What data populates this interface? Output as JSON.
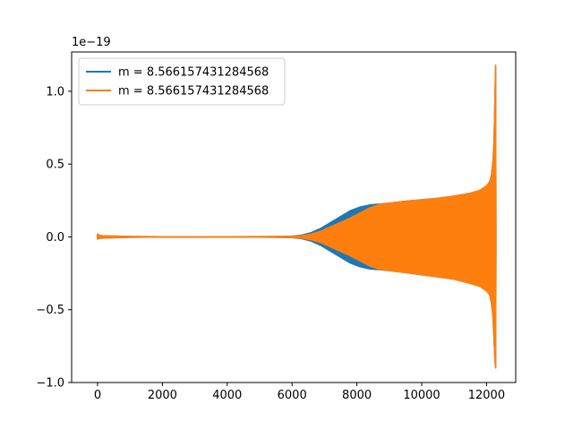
{
  "chart_data": {
    "type": "line",
    "title": "",
    "xlabel": "",
    "ylabel": "",
    "y_offset_label": "1e−19",
    "xlim": [
      -800,
      12900
    ],
    "ylim": [
      -1.0,
      1.27
    ],
    "x_ticks": [
      0,
      2000,
      4000,
      6000,
      8000,
      10000,
      12000
    ],
    "x_tick_labels": [
      "0",
      "2000",
      "4000",
      "6000",
      "8000",
      "10000",
      "12000"
    ],
    "y_ticks": [
      -1.0,
      -0.5,
      0.0,
      0.5,
      1.0
    ],
    "y_tick_labels": [
      "−1.0",
      "−0.5",
      "0.0",
      "0.5",
      "1.0"
    ],
    "grid": false,
    "legend_position": "upper-left",
    "series": [
      {
        "name": "m = 8.566157431284568",
        "color": "#1f77b4",
        "envelope": {
          "x": [
            0,
            30,
            60,
            200,
            1000,
            2000,
            3000,
            4000,
            5000,
            5500,
            6000,
            6300,
            6600,
            6900,
            7200,
            7500,
            7800,
            8100,
            8400,
            8700,
            9000,
            9500,
            10000,
            10500,
            11000,
            11500,
            11800,
            12000,
            12100,
            12150,
            12200,
            12230,
            12260,
            12280,
            12290
          ],
          "upper": [
            0.02,
            0.015,
            0.01,
            0.007,
            0.003,
            0.001,
            0.0008,
            0.0015,
            0.002,
            0.003,
            0.005,
            0.012,
            0.03,
            0.06,
            0.1,
            0.14,
            0.18,
            0.205,
            0.22,
            0.225,
            0.232,
            0.245,
            0.255,
            0.265,
            0.28,
            0.3,
            0.32,
            0.35,
            0.38,
            0.42,
            0.52,
            0.65,
            0.95,
            1.17,
            0.1
          ],
          "lower": [
            -0.015,
            -0.012,
            -0.01,
            -0.007,
            -0.003,
            -0.001,
            -0.0008,
            -0.0015,
            -0.002,
            -0.003,
            -0.005,
            -0.012,
            -0.03,
            -0.06,
            -0.1,
            -0.14,
            -0.18,
            -0.205,
            -0.22,
            -0.225,
            -0.232,
            -0.245,
            -0.26,
            -0.275,
            -0.29,
            -0.32,
            -0.34,
            -0.37,
            -0.4,
            -0.45,
            -0.55,
            -0.7,
            -0.85,
            -0.9,
            -0.1
          ]
        }
      },
      {
        "name": "m = 8.566157431284568",
        "color": "#ff7f0e",
        "envelope": {
          "x": [
            0,
            30,
            60,
            200,
            1000,
            2000,
            3000,
            4000,
            5000,
            5500,
            6000,
            6300,
            6600,
            6900,
            7200,
            7500,
            7800,
            8100,
            8400,
            8700,
            9000,
            9500,
            10000,
            10500,
            11000,
            11500,
            11800,
            12000,
            12100,
            12150,
            12200,
            12230,
            12260,
            12280,
            12290
          ],
          "upper": [
            0.02,
            0.015,
            0.01,
            0.007,
            0.003,
            0.001,
            0.0008,
            0.0015,
            0.002,
            0.003,
            0.004,
            0.008,
            0.02,
            0.04,
            0.07,
            0.1,
            0.13,
            0.165,
            0.2,
            0.222,
            0.232,
            0.245,
            0.255,
            0.265,
            0.28,
            0.3,
            0.32,
            0.35,
            0.38,
            0.42,
            0.52,
            0.65,
            0.95,
            1.18,
            0.1
          ],
          "lower": [
            -0.015,
            -0.012,
            -0.01,
            -0.007,
            -0.003,
            -0.001,
            -0.0008,
            -0.0015,
            -0.002,
            -0.003,
            -0.004,
            -0.008,
            -0.02,
            -0.04,
            -0.07,
            -0.1,
            -0.13,
            -0.165,
            -0.2,
            -0.222,
            -0.232,
            -0.245,
            -0.26,
            -0.275,
            -0.29,
            -0.32,
            -0.34,
            -0.37,
            -0.4,
            -0.45,
            -0.55,
            -0.7,
            -0.85,
            -0.9,
            -0.1
          ]
        }
      }
    ]
  }
}
